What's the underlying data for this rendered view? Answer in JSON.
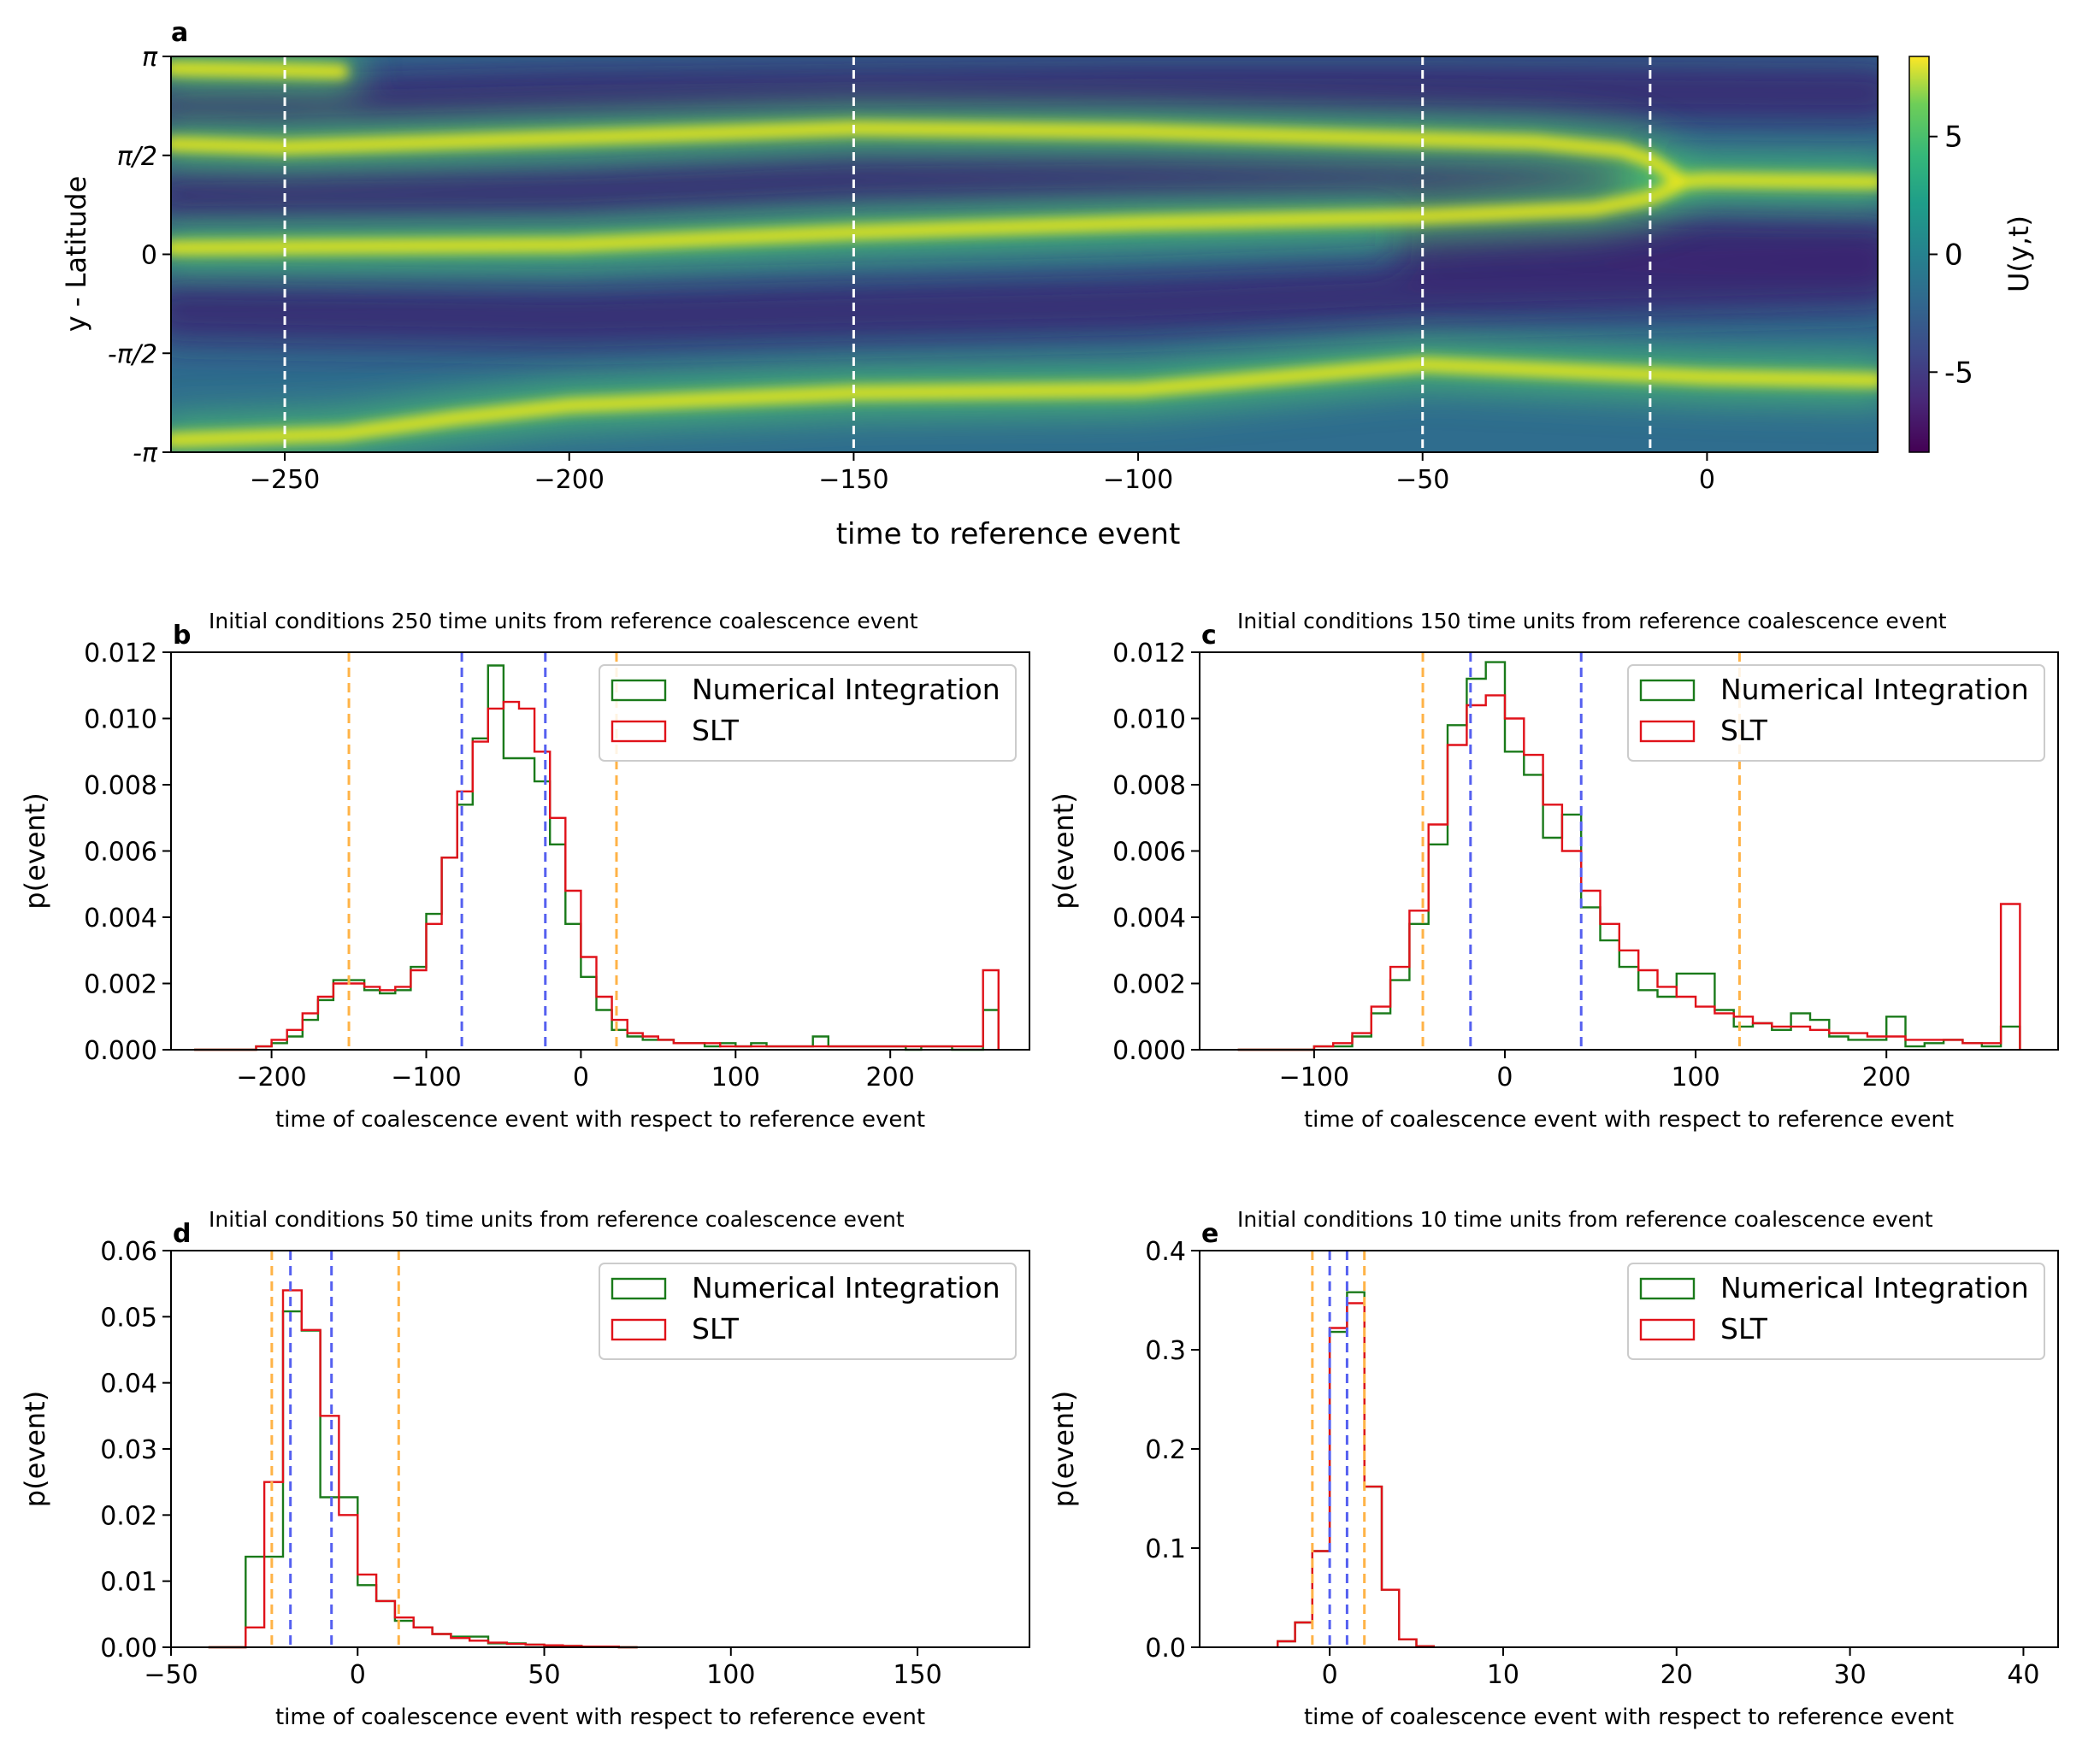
{
  "chart_data": [
    {
      "id": "a",
      "type": "heatmap",
      "panel_label": "a",
      "title": "",
      "xlabel": "time to reference event",
      "ylabel": "y - Latitude",
      "xlim": [
        -270,
        30
      ],
      "ylim": [
        -3.1416,
        3.1416
      ],
      "x_ticks": [
        -250,
        -200,
        -150,
        -100,
        -50,
        0
      ],
      "x_tick_labels": [
        "−250",
        "−200",
        "−150",
        "−100",
        "−50",
        "0"
      ],
      "y_ticks": [
        -3.1416,
        -1.5708,
        0,
        1.5708,
        3.1416
      ],
      "y_tick_labels": [
        "-π",
        "-π/2",
        "0",
        "π/2",
        "π"
      ],
      "colorbar": {
        "label": "U(y,t)",
        "range": [
          -8.4,
          8.4
        ],
        "ticks": [
          5,
          0,
          -5
        ],
        "tick_labels": [
          "5",
          "0",
          "-5"
        ],
        "colormap": "viridis"
      },
      "vertical_markers": [
        -250,
        -150,
        -50,
        -10
      ],
      "marker_color": "#ffffff",
      "jets": [
        {
          "name": "upper jet",
          "t": [
            -270,
            -250,
            -200,
            -150,
            -100,
            -60,
            -30,
            -15,
            -10,
            -5
          ],
          "y": [
            1.75,
            1.7,
            1.85,
            2.0,
            1.95,
            1.85,
            1.78,
            1.65,
            1.5,
            1.2
          ]
        },
        {
          "name": "middle jet",
          "t": [
            -270,
            -200,
            -150,
            -100,
            -50,
            -20,
            -10,
            -5
          ],
          "y": [
            0.1,
            0.15,
            0.35,
            0.5,
            0.6,
            0.72,
            0.9,
            1.1
          ]
        },
        {
          "name": "merged jet",
          "t": [
            -5,
            0,
            30
          ],
          "y": [
            1.15,
            1.18,
            1.15
          ]
        },
        {
          "name": "lower jet",
          "t": [
            -270,
            -240,
            -220,
            -200,
            -150,
            -100,
            -50,
            0,
            30
          ],
          "y": [
            -2.95,
            -2.85,
            -2.6,
            -2.4,
            -2.2,
            -2.15,
            -1.75,
            -1.95,
            -2.0
          ]
        },
        {
          "name": "top edge jet",
          "t": [
            -270,
            -250,
            -240
          ],
          "y": [
            2.95,
            2.92,
            2.9
          ]
        }
      ]
    },
    {
      "id": "b",
      "type": "histogram",
      "panel_label": "b",
      "title": "Initial conditions 250 time units from reference coalescence event",
      "xlabel": "time of coalescence event with respect to reference event",
      "ylabel": "p(event)",
      "xlim": [
        -265,
        290
      ],
      "ylim": [
        0,
        0.012
      ],
      "x_ticks": [
        -200,
        -100,
        0,
        100,
        200
      ],
      "x_tick_labels": [
        "−200",
        "−100",
        "0",
        "100",
        "200"
      ],
      "y_ticks": [
        0,
        0.002,
        0.004,
        0.006,
        0.008,
        0.01,
        0.012
      ],
      "y_tick_labels": [
        "0.000",
        "0.002",
        "0.004",
        "0.006",
        "0.008",
        "0.010",
        "0.012"
      ],
      "legend": [
        "Numerical Integration",
        "SLT"
      ],
      "legend_position": "top-right",
      "blue_lines": [
        -77,
        -23
      ],
      "orange_lines": [
        -150,
        23
      ],
      "series": [
        {
          "name": "Numerical Integration",
          "color": "#1a7a1a",
          "x": [
            -245,
            -235,
            -225,
            -215,
            -205,
            -195,
            -185,
            -175,
            -165,
            -155,
            -145,
            -135,
            -125,
            -115,
            -105,
            -95,
            -85,
            -75,
            -65,
            -55,
            -45,
            -35,
            -25,
            -15,
            -5,
            5,
            15,
            25,
            35,
            45,
            55,
            65,
            75,
            85,
            95,
            105,
            115,
            125,
            135,
            145,
            155,
            165,
            175,
            185,
            195,
            205,
            215,
            225,
            235,
            245,
            255,
            265
          ],
          "values": [
            0,
            0,
            0,
            0,
            0.0001,
            0.0002,
            0.0004,
            0.0009,
            0.0015,
            0.0021,
            0.0021,
            0.0018,
            0.0017,
            0.0018,
            0.0025,
            0.0041,
            0.0058,
            0.0074,
            0.0094,
            0.0116,
            0.0088,
            0.0088,
            0.0081,
            0.0062,
            0.0038,
            0.0022,
            0.0012,
            0.0006,
            0.0004,
            0.0003,
            0.0003,
            0.0002,
            0.0002,
            0.0001,
            0.0002,
            0.0001,
            0.0002,
            0.0001,
            0.0001,
            0.0001,
            0.0004,
            0.0001,
            0.0001,
            0.0001,
            0.0001,
            0.0001,
            0,
            0.0001,
            0.0001,
            0,
            0,
            0.0012
          ]
        },
        {
          "name": "SLT",
          "color": "#e0121a",
          "x": [
            -245,
            -235,
            -225,
            -215,
            -205,
            -195,
            -185,
            -175,
            -165,
            -155,
            -145,
            -135,
            -125,
            -115,
            -105,
            -95,
            -85,
            -75,
            -65,
            -55,
            -45,
            -35,
            -25,
            -15,
            -5,
            5,
            15,
            25,
            35,
            45,
            55,
            65,
            75,
            85,
            95,
            105,
            115,
            125,
            135,
            145,
            155,
            165,
            175,
            185,
            195,
            205,
            215,
            225,
            235,
            245,
            255,
            265
          ],
          "values": [
            0,
            0,
            0,
            0,
            0.0001,
            0.0003,
            0.0006,
            0.0011,
            0.0016,
            0.002,
            0.002,
            0.0019,
            0.0018,
            0.0019,
            0.0024,
            0.0038,
            0.0058,
            0.0078,
            0.0093,
            0.0103,
            0.0105,
            0.0103,
            0.009,
            0.007,
            0.0048,
            0.0028,
            0.0016,
            0.0009,
            0.0005,
            0.0004,
            0.0003,
            0.0002,
            0.0002,
            0.0002,
            0.0001,
            0.0001,
            0.0001,
            0.0001,
            0.0001,
            0.0001,
            0.0001,
            0.0001,
            0.0001,
            0.0001,
            0.0001,
            0.0001,
            0.0001,
            0.0001,
            0.0001,
            0.0001,
            0.0001,
            0.0024
          ]
        }
      ]
    },
    {
      "id": "c",
      "type": "histogram",
      "panel_label": "c",
      "title": "Initial conditions 150 time units from reference coalescence event",
      "xlabel": "time of coalescence event with respect to reference event",
      "ylabel": "p(event)",
      "xlim": [
        -160,
        290
      ],
      "ylim": [
        0,
        0.012
      ],
      "x_ticks": [
        -100,
        0,
        100,
        200
      ],
      "x_tick_labels": [
        "−100",
        "0",
        "100",
        "200"
      ],
      "y_ticks": [
        0,
        0.002,
        0.004,
        0.006,
        0.008,
        0.01,
        0.012
      ],
      "y_tick_labels": [
        "0.000",
        "0.002",
        "0.004",
        "0.006",
        "0.008",
        "0.010",
        "0.012"
      ],
      "legend": [
        "Numerical Integration",
        "SLT"
      ],
      "legend_position": "top-right",
      "blue_lines": [
        -18,
        40
      ],
      "orange_lines": [
        -43,
        123
      ],
      "series": [
        {
          "name": "Numerical Integration",
          "color": "#1a7a1a",
          "x": [
            -135,
            -125,
            -115,
            -105,
            -95,
            -85,
            -75,
            -65,
            -55,
            -45,
            -35,
            -25,
            -15,
            -5,
            5,
            15,
            25,
            35,
            45,
            55,
            65,
            75,
            85,
            95,
            105,
            115,
            125,
            135,
            145,
            155,
            165,
            175,
            185,
            195,
            205,
            215,
            225,
            235,
            245,
            255,
            265
          ],
          "values": [
            0,
            0,
            0,
            0,
            0.0001,
            0.0001,
            0.0004,
            0.0011,
            0.0021,
            0.0038,
            0.0062,
            0.0098,
            0.0112,
            0.0117,
            0.009,
            0.0083,
            0.0064,
            0.0071,
            0.0043,
            0.0033,
            0.0025,
            0.0018,
            0.0016,
            0.0023,
            0.0023,
            0.0012,
            0.0007,
            0.0008,
            0.0006,
            0.0011,
            0.0009,
            0.0004,
            0.0003,
            0.0003,
            0.001,
            0.0001,
            0.0002,
            0.0003,
            0.0002,
            0.0001,
            0.0007
          ]
        },
        {
          "name": "SLT",
          "color": "#e0121a",
          "x": [
            -135,
            -125,
            -115,
            -105,
            -95,
            -85,
            -75,
            -65,
            -55,
            -45,
            -35,
            -25,
            -15,
            -5,
            5,
            15,
            25,
            35,
            45,
            55,
            65,
            75,
            85,
            95,
            105,
            115,
            125,
            135,
            145,
            155,
            165,
            175,
            185,
            195,
            205,
            215,
            225,
            235,
            245,
            255,
            265
          ],
          "values": [
            0,
            0,
            0,
            0,
            0.0001,
            0.0002,
            0.0005,
            0.0013,
            0.0025,
            0.0042,
            0.0068,
            0.0092,
            0.0104,
            0.0107,
            0.01,
            0.0089,
            0.0074,
            0.006,
            0.0048,
            0.0038,
            0.003,
            0.0024,
            0.0019,
            0.0016,
            0.0013,
            0.0011,
            0.001,
            0.0008,
            0.0007,
            0.0007,
            0.0006,
            0.0005,
            0.0005,
            0.0004,
            0.0004,
            0.0003,
            0.0003,
            0.0003,
            0.0002,
            0.0002,
            0.0044
          ]
        }
      ]
    },
    {
      "id": "d",
      "type": "histogram",
      "panel_label": "d",
      "title": "Initial conditions 50 time units from reference coalescence event",
      "xlabel": "time of coalescence event with respect to reference event",
      "ylabel": "p(event)",
      "xlim": [
        -50,
        180
      ],
      "ylim": [
        0,
        0.06
      ],
      "x_ticks": [
        -50,
        0,
        50,
        100,
        150
      ],
      "x_tick_labels": [
        "−50",
        "0",
        "50",
        "100",
        "150"
      ],
      "y_ticks": [
        0,
        0.01,
        0.02,
        0.03,
        0.04,
        0.05,
        0.06
      ],
      "y_tick_labels": [
        "0.00",
        "0.01",
        "0.02",
        "0.03",
        "0.04",
        "0.05",
        "0.06"
      ],
      "legend": [
        "Numerical Integration",
        "SLT"
      ],
      "legend_position": "top-right",
      "blue_lines": [
        -18,
        -7
      ],
      "orange_lines": [
        -23,
        11
      ],
      "series": [
        {
          "name": "Numerical Integration",
          "color": "#1a7a1a",
          "x": [
            -37.5,
            -32.5,
            -27.5,
            -22.5,
            -17.5,
            -12.5,
            -7.5,
            -2.5,
            2.5,
            7.5,
            12.5,
            17.5,
            22.5,
            27.5,
            32.5,
            37.5,
            42.5,
            47.5,
            52.5,
            57.5,
            62.5,
            67.5,
            72.5
          ],
          "values": [
            0,
            0,
            0.0137,
            0.0137,
            0.0508,
            0.0479,
            0.0227,
            0.0227,
            0.0094,
            0.007,
            0.004,
            0.003,
            0.002,
            0.0016,
            0.0016,
            0.0006,
            0.0006,
            0.0004,
            0.0003,
            0.0002,
            0.0001,
            0.0001,
            0
          ]
        },
        {
          "name": "SLT",
          "color": "#e0121a",
          "x": [
            -37.5,
            -32.5,
            -27.5,
            -22.5,
            -17.5,
            -12.5,
            -7.5,
            -2.5,
            2.5,
            7.5,
            12.5,
            17.5,
            22.5,
            27.5,
            32.5,
            37.5,
            42.5,
            47.5,
            52.5,
            57.5,
            62.5,
            67.5,
            72.5
          ],
          "values": [
            0,
            0,
            0.003,
            0.025,
            0.054,
            0.048,
            0.035,
            0.02,
            0.011,
            0.007,
            0.0045,
            0.003,
            0.002,
            0.0014,
            0.001,
            0.0007,
            0.0005,
            0.0004,
            0.0003,
            0.0002,
            0.0001,
            0.0001,
            0
          ]
        }
      ]
    },
    {
      "id": "e",
      "type": "histogram",
      "panel_label": "e",
      "title": "Initial conditions 10 time units from reference coalescence event",
      "xlabel": "time of coalescence event with respect to reference event",
      "ylabel": "p(event)",
      "xlim": [
        -7.5,
        42
      ],
      "ylim": [
        0,
        0.4
      ],
      "x_ticks": [
        0,
        10,
        20,
        30,
        40
      ],
      "x_tick_labels": [
        "0",
        "10",
        "20",
        "30",
        "40"
      ],
      "y_ticks": [
        0,
        0.1,
        0.2,
        0.3,
        0.4
      ],
      "y_tick_labels": [
        "0.0",
        "0.1",
        "0.2",
        "0.3",
        "0.4"
      ],
      "legend": [
        "Numerical Integration",
        "SLT"
      ],
      "legend_position": "top-right",
      "blue_lines": [
        0,
        1
      ],
      "orange_lines": [
        -1,
        2
      ],
      "series": [
        {
          "name": "Numerical Integration",
          "color": "#1a7a1a",
          "x": [
            -2.5,
            -1.5,
            -0.5,
            0.5,
            1.5,
            2.5,
            3.5,
            4.5,
            5.5
          ],
          "values": [
            0.006,
            0.025,
            0.097,
            0.318,
            0.358,
            0.162,
            0.058,
            0.008,
            0.001
          ]
        },
        {
          "name": "SLT",
          "color": "#e0121a",
          "x": [
            -2.5,
            -1.5,
            -0.5,
            0.5,
            1.5,
            2.5,
            3.5,
            4.5,
            5.5
          ],
          "values": [
            0.006,
            0.025,
            0.097,
            0.322,
            0.347,
            0.162,
            0.058,
            0.008,
            0.001
          ]
        }
      ]
    }
  ]
}
